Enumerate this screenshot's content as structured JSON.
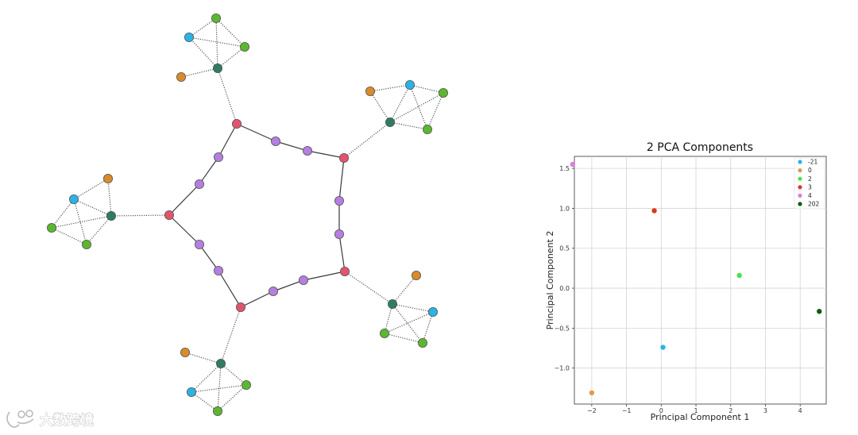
{
  "graph": {
    "colors": {
      "pink": "#e4536e",
      "purple": "#b47fe0",
      "teal": "#2e7d5f",
      "cyan": "#2bb3e6",
      "green": "#5bb82e",
      "orange": "#d98a2a"
    }
  },
  "watermark": {
    "text": "大数跨境",
    "icon": "watermark-logo-icon"
  },
  "chart_data": {
    "type": "scatter",
    "title": "2 PCA Components",
    "xlabel": "Principal Component 1",
    "ylabel": "Principal Component 2",
    "xlim": [
      -2.5,
      4.75
    ],
    "ylim": [
      -1.45,
      1.65
    ],
    "xticks": [
      -2,
      -1,
      0,
      1,
      2,
      3,
      4
    ],
    "yticks": [
      -1.0,
      -0.5,
      0.0,
      0.5,
      1.0,
      1.5
    ],
    "grid": true,
    "legend_position": "top-right",
    "series": [
      {
        "name": "-21",
        "color": "#2bb3e6",
        "x": [
          0.05
        ],
        "y": [
          -0.74
        ]
      },
      {
        "name": "0",
        "color": "#e09a4a",
        "x": [
          -2.0
        ],
        "y": [
          -1.31
        ]
      },
      {
        "name": "2",
        "color": "#4ce04c",
        "x": [
          2.25
        ],
        "y": [
          0.16
        ]
      },
      {
        "name": "3",
        "color": "#d93a1a",
        "x": [
          -0.2
        ],
        "y": [
          0.97
        ]
      },
      {
        "name": "4",
        "color": "#e07ae0",
        "x": [
          -2.55
        ],
        "y": [
          1.55
        ]
      },
      {
        "name": "202",
        "color": "#0f5a0f",
        "x": [
          4.55
        ],
        "y": [
          -0.29
        ]
      }
    ]
  }
}
